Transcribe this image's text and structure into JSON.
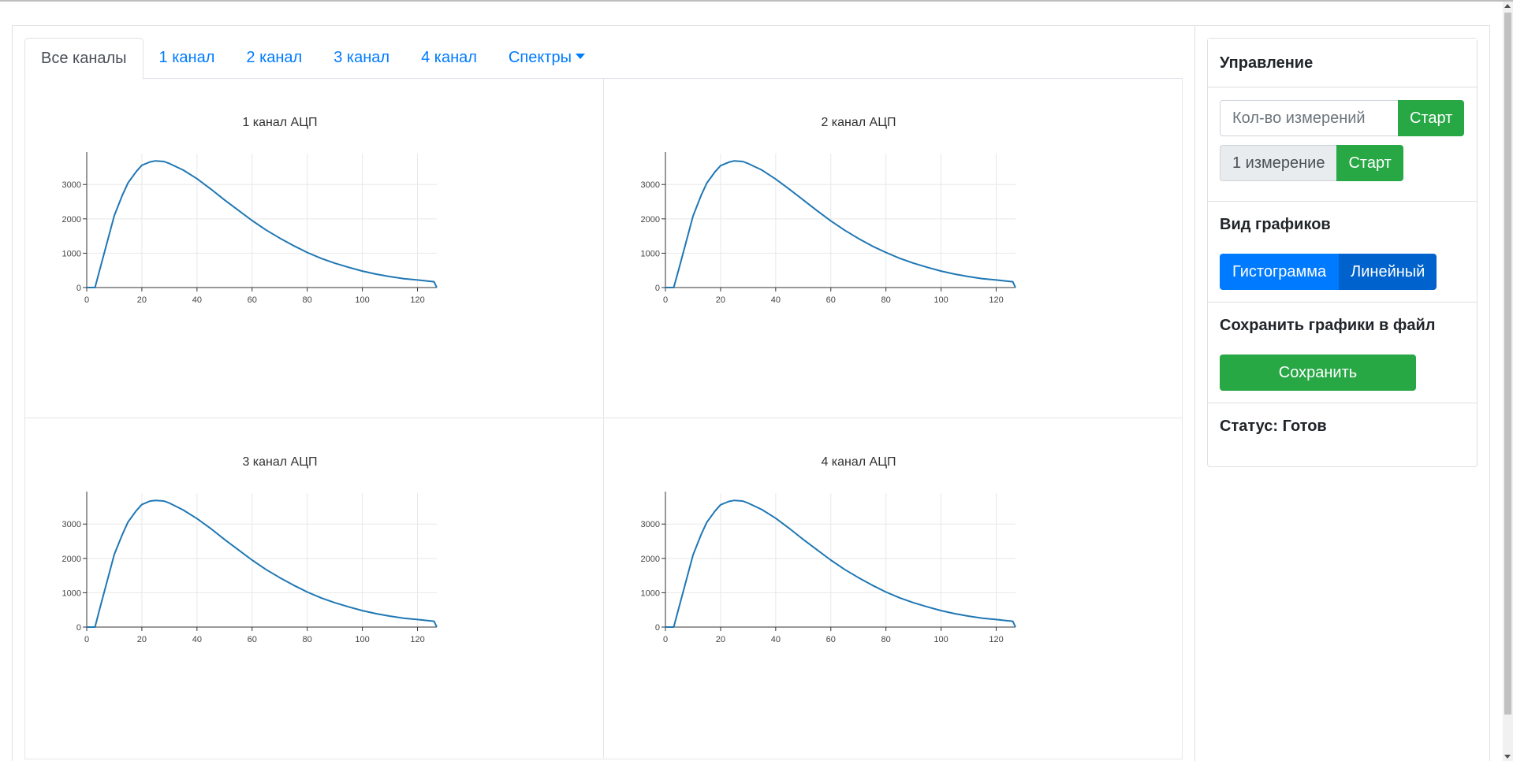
{
  "tabs": [
    {
      "label": "Все каналы",
      "active": true
    },
    {
      "label": "1 канал"
    },
    {
      "label": "2 канал"
    },
    {
      "label": "3 канал"
    },
    {
      "label": "4 канал"
    },
    {
      "label": "Спектры",
      "dropdown": true
    }
  ],
  "colors": {
    "line": "#1f77b4",
    "primary": "#007bff",
    "primary_dark": "#0062cc",
    "success": "#28a745"
  },
  "chart_data": [
    {
      "type": "line",
      "title": "1 канал АЦП",
      "xlabel": "",
      "ylabel": "",
      "xlim": [
        0,
        127
      ],
      "ylim": [
        0,
        3900
      ],
      "x_ticks": [
        "0",
        "20",
        "40",
        "60",
        "80",
        "100",
        "120"
      ],
      "y_ticks": [
        "0",
        "1000",
        "2000",
        "3000"
      ],
      "grid": true,
      "x": [
        0,
        3,
        5,
        8,
        10,
        13,
        15,
        18,
        20,
        23,
        25,
        28,
        30,
        35,
        40,
        45,
        50,
        55,
        60,
        65,
        70,
        75,
        80,
        85,
        90,
        95,
        100,
        105,
        110,
        115,
        120,
        126,
        127
      ],
      "series": [
        {
          "values": [
            0,
            0,
            600,
            1500,
            2100,
            2700,
            3050,
            3380,
            3560,
            3660,
            3690,
            3670,
            3610,
            3420,
            3170,
            2870,
            2550,
            2250,
            1950,
            1680,
            1440,
            1220,
            1020,
            850,
            710,
            590,
            480,
            390,
            320,
            260,
            220,
            170,
            0
          ]
        }
      ]
    },
    {
      "type": "line",
      "title": "2 канал АЦП",
      "xlabel": "",
      "ylabel": "",
      "xlim": [
        0,
        127
      ],
      "ylim": [
        0,
        3900
      ],
      "x_ticks": [
        "0",
        "20",
        "40",
        "60",
        "80",
        "100",
        "120"
      ],
      "y_ticks": [
        "0",
        "1000",
        "2000",
        "3000"
      ],
      "grid": true,
      "x": [
        0,
        3,
        5,
        8,
        10,
        13,
        15,
        18,
        20,
        23,
        25,
        28,
        30,
        35,
        40,
        45,
        50,
        55,
        60,
        65,
        70,
        75,
        80,
        85,
        90,
        95,
        100,
        105,
        110,
        115,
        120,
        126,
        127
      ],
      "series": [
        {
          "values": [
            0,
            0,
            580,
            1480,
            2080,
            2690,
            3040,
            3370,
            3550,
            3650,
            3690,
            3670,
            3610,
            3420,
            3160,
            2860,
            2550,
            2240,
            1940,
            1670,
            1430,
            1210,
            1020,
            850,
            710,
            590,
            480,
            390,
            320,
            260,
            220,
            170,
            0
          ]
        }
      ]
    },
    {
      "type": "line",
      "title": "3 канал АЦП",
      "xlabel": "",
      "ylabel": "",
      "xlim": [
        0,
        127
      ],
      "ylim": [
        0,
        3900
      ],
      "x_ticks": [
        "0",
        "20",
        "40",
        "60",
        "80",
        "100",
        "120"
      ],
      "y_ticks": [
        "0",
        "1000",
        "2000",
        "3000"
      ],
      "grid": true,
      "x": [
        0,
        3,
        5,
        8,
        10,
        13,
        15,
        18,
        20,
        23,
        25,
        28,
        30,
        35,
        40,
        45,
        50,
        55,
        60,
        65,
        70,
        75,
        80,
        85,
        90,
        95,
        100,
        105,
        110,
        115,
        120,
        126,
        127
      ],
      "series": [
        {
          "values": [
            0,
            0,
            620,
            1520,
            2120,
            2710,
            3060,
            3390,
            3570,
            3670,
            3690,
            3670,
            3610,
            3410,
            3160,
            2870,
            2550,
            2250,
            1950,
            1680,
            1440,
            1220,
            1020,
            850,
            710,
            590,
            480,
            390,
            320,
            260,
            220,
            170,
            0
          ]
        }
      ]
    },
    {
      "type": "line",
      "title": "4 канал АЦП",
      "xlabel": "",
      "ylabel": "",
      "xlim": [
        0,
        127
      ],
      "ylim": [
        0,
        3900
      ],
      "x_ticks": [
        "0",
        "20",
        "40",
        "60",
        "80",
        "100",
        "120"
      ],
      "y_ticks": [
        "0",
        "1000",
        "2000",
        "3000"
      ],
      "grid": true,
      "x": [
        0,
        3,
        5,
        8,
        10,
        13,
        15,
        18,
        20,
        23,
        25,
        28,
        30,
        35,
        40,
        45,
        50,
        55,
        60,
        65,
        70,
        75,
        80,
        85,
        90,
        95,
        100,
        105,
        110,
        115,
        120,
        126,
        127
      ],
      "series": [
        {
          "values": [
            0,
            0,
            600,
            1500,
            2100,
            2700,
            3050,
            3380,
            3560,
            3660,
            3690,
            3670,
            3610,
            3420,
            3170,
            2870,
            2550,
            2250,
            1950,
            1680,
            1440,
            1220,
            1020,
            850,
            710,
            590,
            480,
            390,
            320,
            260,
            220,
            170,
            0
          ]
        }
      ]
    }
  ],
  "panel": {
    "header": "Управление",
    "measure_placeholder": "Кол-во измерений",
    "start_label": "Старт",
    "single_label": "1 измерение",
    "start_single_label": "Старт",
    "view_title": "Вид графиков",
    "view_hist": "Гистограмма",
    "view_line": "Линейный",
    "save_title": "Сохранить графики в файл",
    "save_label": "Сохранить",
    "status": "Статус: Готов"
  }
}
